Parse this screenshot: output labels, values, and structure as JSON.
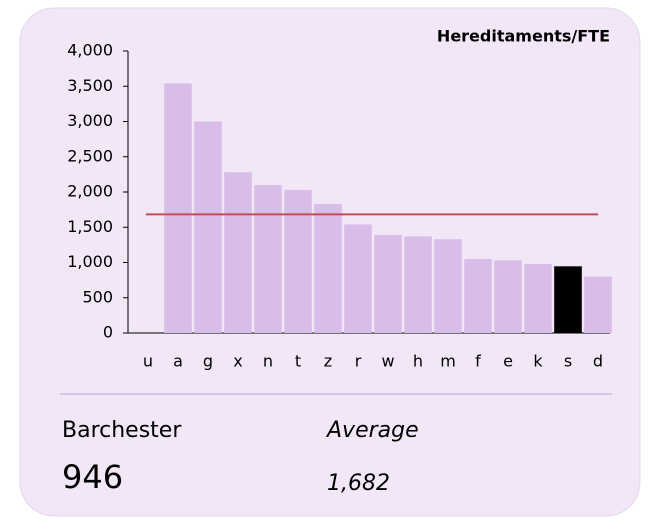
{
  "chart_data": {
    "type": "bar",
    "title": "Hereditaments/FTE",
    "categories": [
      "u",
      "a",
      "g",
      "x",
      "n",
      "t",
      "z",
      "r",
      "w",
      "h",
      "m",
      "f",
      "e",
      "k",
      "s",
      "d"
    ],
    "values": [
      null,
      3540,
      3000,
      2280,
      2100,
      2030,
      1830,
      1540,
      1390,
      1370,
      1330,
      1050,
      1030,
      980,
      946,
      800
    ],
    "colors": [
      "#d8bde8",
      "#d8bde8",
      "#d8bde8",
      "#d8bde8",
      "#d8bde8",
      "#d8bde8",
      "#d8bde8",
      "#d8bde8",
      "#d8bde8",
      "#d8bde8",
      "#d8bde8",
      "#d8bde8",
      "#d8bde8",
      "#d8bde8",
      "#000000",
      "#d8bde8"
    ],
    "ylim": [
      0,
      4000
    ],
    "yticks": [
      0,
      500,
      {
        "value": 1000,
        "label": "1,000"
      },
      {
        "value": 1500,
        "label": "1,500"
      },
      {
        "value": 2000,
        "label": "2,000"
      },
      {
        "value": 2500,
        "label": "2,500"
      },
      {
        "value": 3000,
        "label": "3,000"
      },
      {
        "value": 3500,
        "label": "3,500"
      },
      {
        "value": 4000,
        "label": "4,000"
      }
    ],
    "grid": false,
    "highlight": {
      "name": "Barchester",
      "value": 946
    },
    "average": {
      "name": "Average",
      "value": 1682,
      "value_label": "1,682",
      "color": "#c0504d"
    }
  }
}
